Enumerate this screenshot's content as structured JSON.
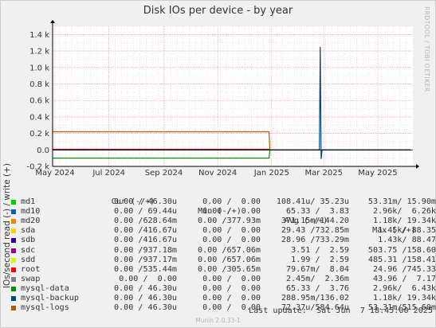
{
  "title": "Disk IOs per device - by year",
  "side_credit": "RRDTOOL / TOBI OETIKER",
  "footer": {
    "last_update": "Last update:  Sat Jun  7 18:45:00 2025",
    "version": "Munin 2.0.33-1"
  },
  "legend_header": {
    "cur": "Cur (-/+)",
    "min": "Min (-/+)",
    "avg": "Avg (-/+)",
    "max": "Max (-/+)"
  },
  "legend": [
    {
      "name": "md1",
      "color": "#00cc00",
      "cur": "0.00 / 46.30u",
      "min": "0.00 /  0.00",
      "avg": "108.41u/ 35.23u",
      "max": "53.31m/ 15.90m"
    },
    {
      "name": "md10",
      "color": "#0066b3",
      "cur": "0.00 / 69.44u",
      "min": "0.00 /  0.00",
      "avg": "65.33 /  3.83",
      "max": "2.96k/  6.26k"
    },
    {
      "name": "md20",
      "color": "#ff8000",
      "cur": "0.00 /628.64m",
      "min": "0.00 /377.93m",
      "avg": "371.15m/144.20",
      "max": "1.18k/ 19.34k"
    },
    {
      "name": "sda",
      "color": "#ffcc00",
      "cur": "0.00 /416.67u",
      "min": "0.00 /  0.00",
      "avg": "29.43 /732.85m",
      "max": "1.45k/ 88.35"
    },
    {
      "name": "sdb",
      "color": "#330099",
      "cur": "0.00 /416.67u",
      "min": "0.00 /  0.00",
      "avg": "28.96 /733.29m",
      "max": "1.43k/ 88.47"
    },
    {
      "name": "sdc",
      "color": "#990099",
      "cur": "0.00 /937.18m",
      "min": "0.00 /657.06m",
      "avg": "3.51 /  2.59",
      "max": "503.75 /158.60"
    },
    {
      "name": "sdd",
      "color": "#ccff00",
      "cur": "0.00 /937.17m",
      "min": "0.00 /657.06m",
      "avg": "1.99 /  2.59",
      "max": "485.31 /158.41"
    },
    {
      "name": "root",
      "color": "#ff0000",
      "cur": "0.00 /535.44m",
      "min": "0.00 /305.65m",
      "avg": "79.67m/  8.04",
      "max": "24.96 /745.33"
    },
    {
      "name": "swap",
      "color": "#808080",
      "cur": "0.00 /  0.00",
      "min": "0.00 /  0.00",
      "avg": "2.45m/  2.36m",
      "max": "43.96 /  7.17"
    },
    {
      "name": "mysql-data",
      "color": "#008f00",
      "cur": "0.00 / 46.30u",
      "min": "0.00 /  0.00",
      "avg": "65.33 /  3.76",
      "max": "2.96k/  6.43k"
    },
    {
      "name": "mysql-backup",
      "color": "#00487d",
      "cur": "0.00 / 46.30u",
      "min": "0.00 /  0.00",
      "avg": "288.95m/136.02",
      "max": "1.18k/ 19.34k"
    },
    {
      "name": "mysql-logs",
      "color": "#b35a00",
      "cur": "0.00 / 46.30u",
      "min": "0.00 /  0.00",
      "avg": "72.37u/584.64u",
      "max": "53.31m/515.60m"
    }
  ],
  "chart_data": {
    "type": "line",
    "title": "Disk IOs per device - by year",
    "ylabel": "IOs/second read (-) / write (+)",
    "xlabel": "",
    "ylim": [
      -200,
      1500
    ],
    "xlim": [
      "2024-05-01",
      "2025-06-07"
    ],
    "y_ticks": [
      {
        "value": -200,
        "label": "-0.2 k"
      },
      {
        "value": 0,
        "label": "0.0"
      },
      {
        "value": 200,
        "label": "0.2 k"
      },
      {
        "value": 400,
        "label": "0.4 k"
      },
      {
        "value": 600,
        "label": "0.6 k"
      },
      {
        "value": 800,
        "label": "0.8 k"
      },
      {
        "value": 1000,
        "label": "1.0 k"
      },
      {
        "value": 1200,
        "label": "1.2 k"
      },
      {
        "value": 1400,
        "label": "1.4 k"
      }
    ],
    "x_ticks": [
      {
        "date": "2024-05-01",
        "label": "May 2024"
      },
      {
        "date": "2024-07-01",
        "label": "Jul 2024"
      },
      {
        "date": "2024-09-01",
        "label": "Sep 2024"
      },
      {
        "date": "2024-11-01",
        "label": "Nov 2024"
      },
      {
        "date": "2025-01-01",
        "label": "Jan 2025"
      },
      {
        "date": "2025-03-01",
        "label": "Mar 2025"
      },
      {
        "date": "2025-05-01",
        "label": "May 2025"
      }
    ],
    "grid": true,
    "legend_position": "bottom",
    "series": [
      {
        "name": "mysql-logs",
        "color": "#b35a00",
        "points": [
          [
            "2024-04-28",
            220
          ],
          [
            "2024-12-29",
            220
          ],
          [
            "2024-12-30",
            0
          ],
          [
            "2025-06-07",
            0
          ]
        ]
      },
      {
        "name": "md1",
        "color": "#00cc00",
        "points": [
          [
            "2024-04-28",
            5
          ],
          [
            "2024-12-29",
            5
          ],
          [
            "2024-12-30",
            0
          ],
          [
            "2025-06-07",
            0
          ]
        ]
      },
      {
        "name": "root",
        "color": "#ff0000",
        "points": [
          [
            "2024-04-28",
            8
          ],
          [
            "2024-12-29",
            8
          ],
          [
            "2024-12-30",
            0
          ],
          [
            "2025-06-07",
            0
          ]
        ]
      },
      {
        "name": "mysql-data",
        "color": "#008f00",
        "points": [
          [
            "2024-04-28",
            -100
          ],
          [
            "2024-12-29",
            -100
          ],
          [
            "2024-12-30",
            0
          ],
          [
            "2025-06-07",
            0
          ]
        ]
      },
      {
        "name": "swap",
        "color": "#808080",
        "points": [
          [
            "2024-04-28",
            0
          ],
          [
            "2025-06-07",
            0
          ]
        ]
      },
      {
        "name": "mysql-backup",
        "color": "#00487d",
        "points": [
          [
            "2024-04-28",
            0
          ],
          [
            "2025-02-24",
            0
          ],
          [
            "2025-02-25",
            1250
          ],
          [
            "2025-02-26",
            -110
          ],
          [
            "2025-02-27",
            0
          ],
          [
            "2025-06-07",
            0
          ]
        ]
      }
    ]
  }
}
